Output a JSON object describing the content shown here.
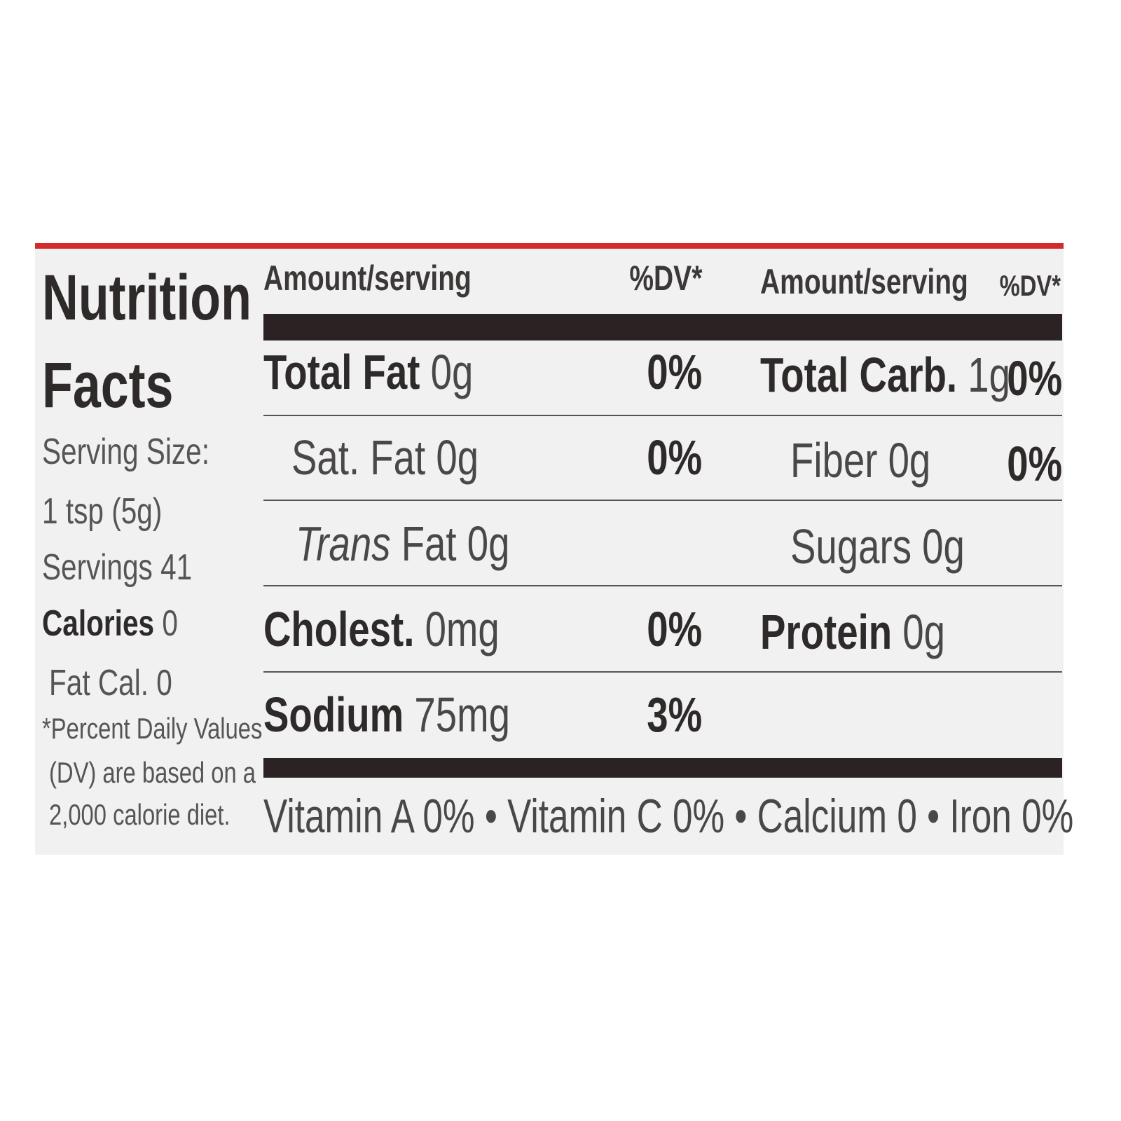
{
  "left_panel": {
    "title_line1": "Nutrition",
    "title_line2": "Facts",
    "serving_size_label": "Serving Size:",
    "serving_size_value": "1 tsp (5g)",
    "servings": "Servings 41",
    "calories_label": "Calories",
    "calories_value": "0",
    "fat_cal": "Fat Cal. 0",
    "footnote": [
      "*Percent Daily Values",
      "(DV) are based on a",
      "2,000 calorie diet."
    ]
  },
  "headers": {
    "amount_left": "Amount/serving",
    "dv_left": "%DV*",
    "amount_right": "Amount/serving",
    "dv_right": "%DV*"
  },
  "rows_left": [
    {
      "name": "Total Fat",
      "amount": "0g",
      "dv": "0%",
      "bold": true
    },
    {
      "name": "Sat. Fat",
      "amount": "0g",
      "dv": "0%",
      "bold": false
    },
    {
      "name": "Trans",
      "name2": "Fat",
      "amount": "0g",
      "dv": "",
      "bold": false
    },
    {
      "name": "Cholest.",
      "amount": "0mg",
      "dv": "0%",
      "bold": true
    },
    {
      "name": "Sodium",
      "amount": "75mg",
      "dv": "3%",
      "bold": true
    }
  ],
  "rows_right": [
    {
      "name": "Total Carb.",
      "amount": "1g",
      "dv": "0%",
      "bold": true
    },
    {
      "name": "Fiber",
      "amount": "0g",
      "dv": "0%",
      "bold": false
    },
    {
      "name": "Sugars",
      "amount": "0g",
      "dv": "",
      "bold": false
    },
    {
      "name": "Protein",
      "amount": "0g",
      "dv": "",
      "bold": true
    }
  ],
  "vitamins": "Vitamin A 0% • Vitamin C 0% • Calcium 0 • Iron 0%",
  "colors": {
    "accent_red": "#d42a2a",
    "bar": "#2b2323",
    "label_bg": "#f1f1f1"
  }
}
